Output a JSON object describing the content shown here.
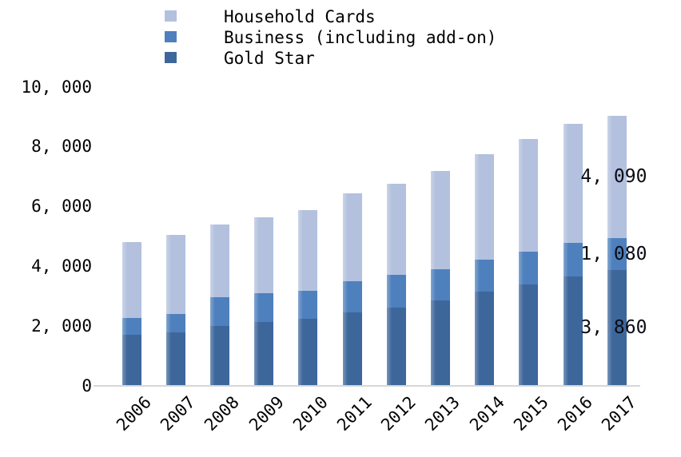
{
  "chart_data": {
    "type": "bar",
    "stacked": true,
    "title": "",
    "xlabel": "",
    "ylabel": "",
    "categories": [
      "2006",
      "2007",
      "2008",
      "2009",
      "2010",
      "2011",
      "2012",
      "2013",
      "2014",
      "2015",
      "2016",
      "2017"
    ],
    "series": [
      {
        "name": "Gold Star",
        "color": "#3d679b",
        "values": [
          1710,
          1790,
          2000,
          2130,
          2220,
          2450,
          2620,
          2860,
          3130,
          3370,
          3660,
          3860
        ]
      },
      {
        "name": "Business (including add-on)",
        "color": "#4e80bd",
        "values": [
          540,
          590,
          950,
          950,
          960,
          1050,
          1070,
          1020,
          1070,
          1100,
          1120,
          1080
        ]
      },
      {
        "name": "Household Cards",
        "color": "#b3c1de",
        "values": [
          2540,
          2670,
          2430,
          2540,
          2680,
          2940,
          3070,
          3310,
          3530,
          3770,
          3990,
          4090
        ]
      }
    ],
    "ylim": [
      0,
      10000
    ],
    "y_ticks": [
      {
        "label": "0",
        "value": 0
      },
      {
        "label": "2, 000",
        "value": 2000
      },
      {
        "label": "4, 000",
        "value": 4000
      },
      {
        "label": "6, 000",
        "value": 6000
      },
      {
        "label": "8, 000",
        "value": 8000
      },
      {
        "label": "10, 000",
        "value": 10000
      }
    ],
    "grid": false,
    "legend_position": "top-left",
    "annotations": [
      {
        "text": "4, 090",
        "category": "2017",
        "series": "Household Cards"
      },
      {
        "text": "1, 080",
        "category": "2017",
        "series": "Business (including add-on)"
      },
      {
        "text": "3, 860",
        "category": "2017",
        "series": "Gold Star"
      }
    ]
  },
  "legend": {
    "items": [
      {
        "label": "Household Cards",
        "color": "#b3c1de"
      },
      {
        "label": "Business (including add-on)",
        "color": "#4e80bd"
      },
      {
        "label": "Gold Star",
        "color": "#3d679b"
      }
    ]
  }
}
